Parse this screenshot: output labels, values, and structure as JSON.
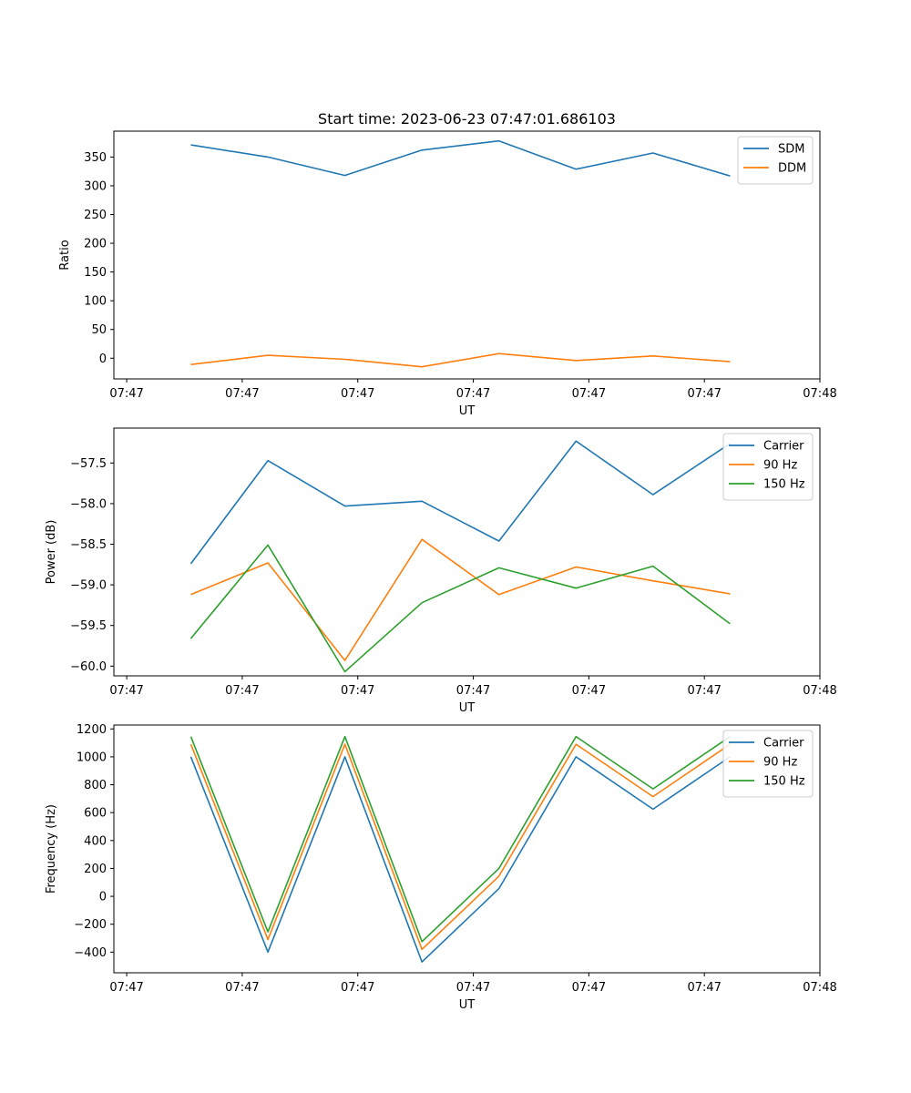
{
  "chart_data": [
    {
      "type": "line",
      "title": "Start time: 2023-06-23 07:47:01.686103",
      "xlabel": "UT",
      "ylabel": "Ratio",
      "x": [
        0.6,
        1.2,
        1.8,
        2.4,
        3.0,
        3.6,
        4.2,
        4.8
      ],
      "xlim": [
        0,
        5.5
      ],
      "xticks": [
        0.1,
        1.0,
        1.9,
        2.8,
        3.7,
        4.6,
        5.5
      ],
      "xtick_labels": [
        "07:47",
        "07:47",
        "07:47",
        "07:47",
        "07:47",
        "07:47",
        "07:48"
      ],
      "ylim": [
        -36,
        395
      ],
      "yticks": [
        0,
        50,
        100,
        150,
        200,
        250,
        300,
        350
      ],
      "ytick_labels": [
        "0",
        "50",
        "100",
        "150",
        "200",
        "250",
        "300",
        "350"
      ],
      "legend": "top-right",
      "grid": false,
      "series": [
        {
          "name": "SDM",
          "color": "#1f77b4",
          "values": [
            371,
            350,
            318,
            362,
            378,
            329,
            357,
            317
          ]
        },
        {
          "name": "DDM",
          "color": "#ff7f0e",
          "values": [
            -11,
            5,
            -2,
            -15,
            8,
            -4,
            4,
            -6
          ]
        }
      ]
    },
    {
      "type": "line",
      "title": "",
      "xlabel": "UT",
      "ylabel": "Power (dB)",
      "x": [
        0.6,
        1.2,
        1.8,
        2.4,
        3.0,
        3.6,
        4.2,
        4.8
      ],
      "xlim": [
        0,
        5.5
      ],
      "xticks": [
        0.1,
        1.0,
        1.9,
        2.8,
        3.7,
        4.6,
        5.5
      ],
      "xtick_labels": [
        "07:47",
        "07:47",
        "07:47",
        "07:47",
        "07:47",
        "07:47",
        "07:48"
      ],
      "ylim": [
        -60.12,
        -57.07
      ],
      "yticks": [
        -60.0,
        -59.5,
        -59.0,
        -58.5,
        -58.0,
        -57.5
      ],
      "ytick_labels": [
        "−60.0",
        "−59.5",
        "−59.0",
        "−58.5",
        "−58.0",
        "−57.5"
      ],
      "legend": "top-right",
      "grid": false,
      "series": [
        {
          "name": "Carrier",
          "color": "#1f77b4",
          "values": [
            -58.74,
            -57.47,
            -58.03,
            -57.97,
            -58.46,
            -57.23,
            -57.89,
            -57.26
          ]
        },
        {
          "name": "90 Hz",
          "color": "#ff7f0e",
          "values": [
            -59.12,
            -58.73,
            -59.93,
            -58.44,
            -59.12,
            -58.78,
            -58.95,
            -59.11
          ]
        },
        {
          "name": "150 Hz",
          "color": "#2ca02c",
          "values": [
            -59.66,
            -58.51,
            -60.07,
            -59.22,
            -58.79,
            -59.04,
            -58.77,
            -59.48
          ]
        }
      ]
    },
    {
      "type": "line",
      "title": "",
      "xlabel": "UT",
      "ylabel": "Frequency (Hz)",
      "x": [
        0.6,
        1.2,
        1.8,
        2.4,
        3.0,
        3.6,
        4.2,
        4.8
      ],
      "xlim": [
        0,
        5.5
      ],
      "xticks": [
        0.1,
        1.0,
        1.9,
        2.8,
        3.7,
        4.6,
        5.5
      ],
      "xtick_labels": [
        "07:47",
        "07:47",
        "07:47",
        "07:47",
        "07:47",
        "07:47",
        "07:48"
      ],
      "ylim": [
        -548,
        1228
      ],
      "yticks": [
        -400,
        -200,
        0,
        200,
        400,
        600,
        800,
        1000,
        1200
      ],
      "ytick_labels": [
        "−400",
        "−200",
        "0",
        "200",
        "400",
        "600",
        "800",
        "1000",
        "1200"
      ],
      "legend": "top-right",
      "grid": false,
      "series": [
        {
          "name": "Carrier",
          "color": "#1f77b4",
          "values": [
            1000,
            -400,
            1000,
            -470,
            55,
            1000,
            625,
            1000
          ]
        },
        {
          "name": "90 Hz",
          "color": "#ff7f0e",
          "values": [
            1090,
            -310,
            1090,
            -380,
            145,
            1090,
            715,
            1090
          ]
        },
        {
          "name": "150 Hz",
          "color": "#2ca02c",
          "values": [
            1145,
            -255,
            1145,
            -325,
            200,
            1145,
            770,
            1145
          ]
        }
      ]
    }
  ]
}
